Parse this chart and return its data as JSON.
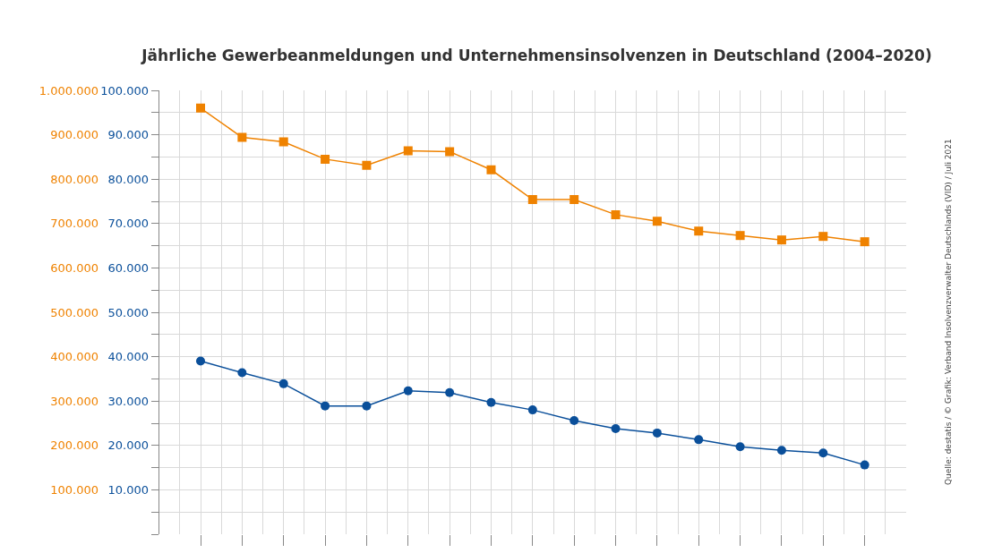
{
  "chart_data": {
    "type": "line",
    "title": "Jährliche Gewerbeanmeldungen und Unternehmensinsolvenzen in Deutschland (2004–2020)",
    "categories": [
      null,
      null,
      null,
      null,
      null,
      null,
      null,
      null,
      null,
      null,
      null,
      null,
      null,
      null,
      null,
      null,
      null
    ],
    "series": [
      {
        "color": "#ef8200",
        "axis": "y2",
        "marker": "square",
        "values": [
          960000,
          894000,
          884000,
          845000,
          831000,
          864000,
          862000,
          821000,
          754000,
          754000,
          720000,
          705000,
          683000,
          673000,
          663000,
          671000,
          659000
        ]
      },
      {
        "color": "#0a4f9a",
        "axis": "y",
        "marker": "circle",
        "values": [
          39000,
          36400,
          33900,
          28900,
          28900,
          32300,
          31900,
          29700,
          28000,
          25600,
          23800,
          22800,
          21300,
          19700,
          18900,
          18300,
          15600
        ]
      }
    ],
    "ylim": [
      0,
      100000
    ],
    "yticks": [
      {
        "value": 0,
        "label": null
      },
      {
        "value": 5000,
        "label": null
      },
      {
        "value": 10000,
        "label": "10.000"
      },
      {
        "value": 15000,
        "label": null
      },
      {
        "value": 20000,
        "label": "20.000"
      },
      {
        "value": 25000,
        "label": null
      },
      {
        "value": 30000,
        "label": "30.000"
      },
      {
        "value": 35000,
        "label": null
      },
      {
        "value": 40000,
        "label": "40.000"
      },
      {
        "value": 45000,
        "label": null
      },
      {
        "value": 50000,
        "label": "50.000"
      },
      {
        "value": 55000,
        "label": null
      },
      {
        "value": 60000,
        "label": "60.000"
      },
      {
        "value": 65000,
        "label": null
      },
      {
        "value": 70000,
        "label": "70.000"
      },
      {
        "value": 75000,
        "label": null
      },
      {
        "value": 80000,
        "label": "80.000"
      },
      {
        "value": 85000,
        "label": null
      },
      {
        "value": 90000,
        "label": "90.000"
      },
      {
        "value": 95000,
        "label": null
      },
      {
        "value": 100000,
        "label": "100.000"
      }
    ],
    "y2lim": [
      0,
      1000000
    ],
    "y2ticks": [
      {
        "value": 100000,
        "label": "100.000"
      },
      {
        "value": 200000,
        "label": "200.000"
      },
      {
        "value": 300000,
        "label": "300.000"
      },
      {
        "value": 400000,
        "label": "400.000"
      },
      {
        "value": 500000,
        "label": "500.000"
      },
      {
        "value": 600000,
        "label": "600.000"
      },
      {
        "value": 700000,
        "label": "700.000"
      },
      {
        "value": 800000,
        "label": "800.000"
      },
      {
        "value": 900000,
        "label": "900.000"
      },
      {
        "value": 1000000,
        "label": "1.000.000"
      }
    ],
    "grid": true,
    "legend": false,
    "annotations": [
      "Quelle: destatis / © Grafik: Verband Insolvenzverwalter Deutschlands (VID) / Juli 2021"
    ]
  }
}
